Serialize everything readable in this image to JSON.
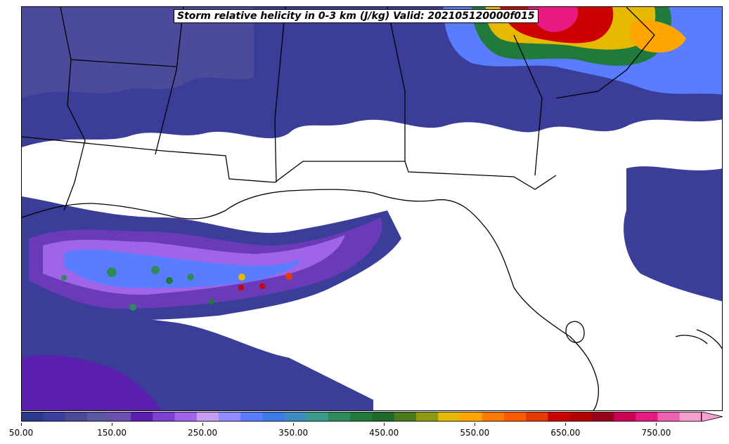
{
  "title": "Storm relative helicity in 0-3 km (J/kg) Valid: 202105120000f015",
  "colorbar": {
    "ticks": [
      "50.00",
      "150.00",
      "250.00",
      "350.00",
      "450.00",
      "550.00",
      "650.00",
      "750.00"
    ],
    "min": 50,
    "max": 800,
    "step": 25,
    "extend": "max",
    "colors": [
      "#2c3a8c",
      "#3b3ea0",
      "#4a4a98",
      "#5b57a3",
      "#6c4db0",
      "#5b1fb0",
      "#7f3fd3",
      "#a064e8",
      "#c79cf5",
      "#8e8cff",
      "#5a7cff",
      "#3c7ae6",
      "#3a8cc2",
      "#3a9a8c",
      "#2e8a5a",
      "#1f7a3c",
      "#1f6b2a",
      "#4a7a1a",
      "#8c9a10",
      "#e6b800",
      "#ffa500",
      "#ff7a00",
      "#ff5a00",
      "#e63a00",
      "#cc0000",
      "#b30000",
      "#99001a",
      "#cc0055",
      "#e61a80",
      "#f060b0",
      "#f7a0d0"
    ]
  },
  "legend": {
    "helicity_units": "J/kg"
  }
}
